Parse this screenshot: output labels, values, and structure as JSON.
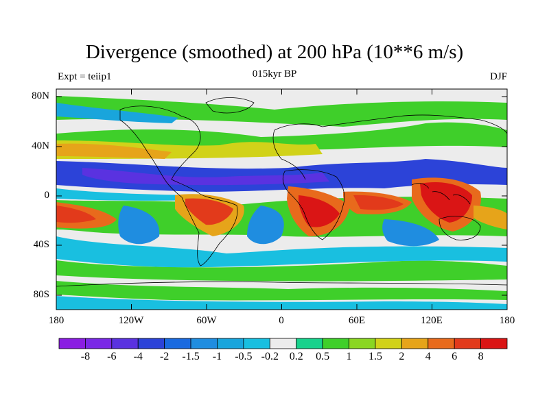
{
  "map": {
    "title": "Divergence (smoothed) at 200 hPa (10**6 m/s)",
    "subtitle_left": "Expt = teiip1",
    "subtitle_center": "015kyr BP",
    "subtitle_right": "DJF",
    "lat_labels": [
      "80N",
      "40N",
      "0",
      "40S",
      "80S"
    ],
    "lon_labels": [
      "180",
      "120W",
      "60W",
      "0",
      "60E",
      "120E",
      "180"
    ],
    "ocean_color": "#ececec"
  },
  "colorbar": {
    "labels": [
      "-8",
      "-6",
      "-4",
      "-2",
      "-1.5",
      "-1",
      "-0.5",
      "-0.2",
      "0.2",
      "0.5",
      "1",
      "1.5",
      "2",
      "4",
      "6",
      "8"
    ],
    "colors": [
      "#8a1de2",
      "#7a28e6",
      "#5a32e0",
      "#2c43d8",
      "#1a6ae0",
      "#1f8de0",
      "#19a5dc",
      "#19bfe0",
      "#ececec",
      "#18d28c",
      "#3fcf2a",
      "#8ad622",
      "#d1d219",
      "#e6a41a",
      "#e86a1c",
      "#e23a1b",
      "#da1515"
    ]
  }
}
